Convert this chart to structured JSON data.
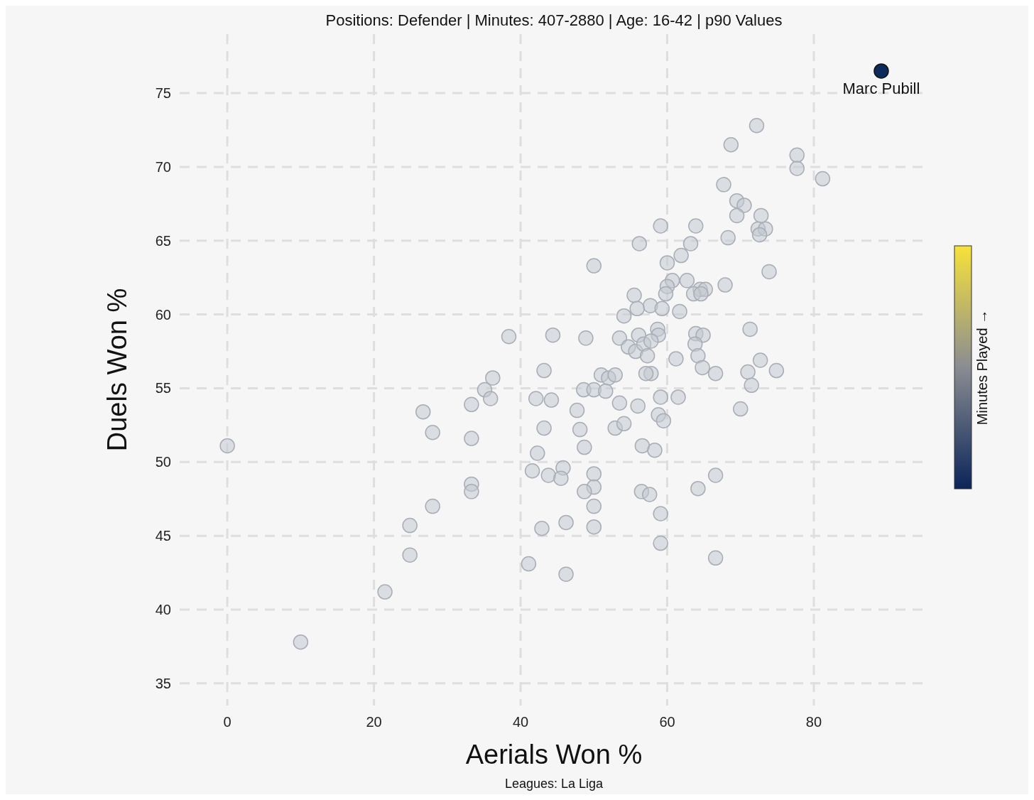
{
  "chart_data": {
    "type": "scatter",
    "title": "Positions: Defender  | Minutes: 407-2880 | Age: 16-42  | p90 Values",
    "xlabel": "Aerials Won %",
    "ylabel": "Duels Won %",
    "clabel": "Minutes Played →",
    "annotations": [
      "Leagues: La Liga"
    ],
    "xlim": [
      -6.5,
      95.5
    ],
    "ylim": [
      33.5,
      79
    ],
    "xticks": [
      0,
      20,
      40,
      60,
      80
    ],
    "yticks": [
      35,
      40,
      45,
      50,
      55,
      60,
      65,
      70,
      75
    ],
    "grid": true,
    "marker": "circle",
    "series": [
      {
        "color": "#c3c8d2",
        "x": [
          72.2,
          68.7,
          77.7,
          77.7,
          81.2,
          67.7,
          69.5,
          70.5,
          72.8,
          69.5,
          68.3,
          72.4,
          73.4,
          72.6,
          73.9,
          59.1,
          63.9,
          56.2,
          63.2,
          50.0,
          60.0,
          61.9,
          60.7,
          62.7,
          60.0,
          64.5,
          65.2,
          63.6,
          64.6,
          59.8,
          55.5,
          67.9,
          57.7,
          55.9,
          59.3,
          61.7,
          54.1,
          71.3,
          38.4,
          44.4,
          48.9,
          53.5,
          56.1,
          58.7,
          58.8,
          63.9,
          64.9,
          63.8,
          54.7,
          55.7,
          56.8,
          57.8,
          57.3,
          61.2,
          64.2,
          72.7,
          74.9,
          64.8,
          66.6,
          57.8,
          57.1,
          71.0,
          71.5,
          36.2,
          35.1,
          35.9,
          33.3,
          43.2,
          51.0,
          52.0,
          52.9,
          48.6,
          50.0,
          51.6,
          42.1,
          44.2,
          53.5,
          59.1,
          61.5,
          56.0,
          26.7,
          28.0,
          47.7,
          58.8,
          59.5,
          52.9,
          54.1,
          43.2,
          48.1,
          70.0,
          33.3,
          0,
          56.6,
          58.3,
          48.7,
          42.3,
          45.8,
          41.6,
          43.8,
          45.5,
          50.0,
          66.6,
          33.3,
          33.3,
          50.0,
          48.7,
          56.5,
          57.6,
          64.2,
          28.0,
          50.0,
          59.1,
          24.9,
          46.2,
          42.9,
          50.0,
          24.9,
          59.1,
          66.6,
          41.1,
          46.2,
          21.5,
          10.0
        ],
        "values": [
          72.8,
          71.5,
          70.8,
          69.9,
          69.2,
          68.8,
          67.7,
          67.4,
          66.7,
          66.7,
          65.2,
          65.8,
          65.8,
          65.4,
          62.9,
          66.0,
          66.0,
          64.8,
          64.8,
          63.3,
          63.5,
          64.0,
          62.3,
          62.3,
          61.9,
          61.7,
          61.7,
          61.4,
          61.4,
          61.4,
          61.3,
          62.0,
          60.6,
          60.4,
          60.4,
          60.2,
          59.9,
          59.0,
          58.5,
          58.6,
          58.4,
          58.4,
          58.6,
          59.0,
          58.6,
          58.7,
          58.6,
          58.0,
          57.8,
          57.5,
          58.0,
          58.2,
          57.2,
          57.0,
          57.2,
          56.9,
          56.2,
          56.4,
          56.0,
          56.0,
          56.0,
          56.1,
          55.2,
          55.7,
          54.9,
          54.3,
          53.9,
          56.2,
          55.9,
          55.7,
          55.9,
          54.9,
          54.9,
          54.8,
          54.3,
          54.2,
          54.0,
          54.4,
          54.4,
          53.8,
          53.4,
          52.0,
          53.5,
          53.2,
          52.8,
          52.3,
          52.6,
          52.3,
          52.2,
          53.6,
          51.6,
          51.1,
          51.1,
          50.8,
          51.0,
          50.6,
          49.6,
          49.4,
          49.1,
          48.9,
          49.2,
          49.1,
          48.5,
          48.0,
          48.3,
          48.0,
          48.0,
          47.8,
          48.2,
          47.0,
          47.0,
          46.5,
          45.7,
          45.9,
          45.5,
          45.6,
          43.7,
          44.5,
          43.5,
          43.1,
          42.4,
          41.2,
          37.8
        ]
      },
      {
        "name": "Marc Pubill",
        "color": "#0d2a5c",
        "x": [
          89.2
        ],
        "values": [
          76.5
        ]
      }
    ]
  }
}
